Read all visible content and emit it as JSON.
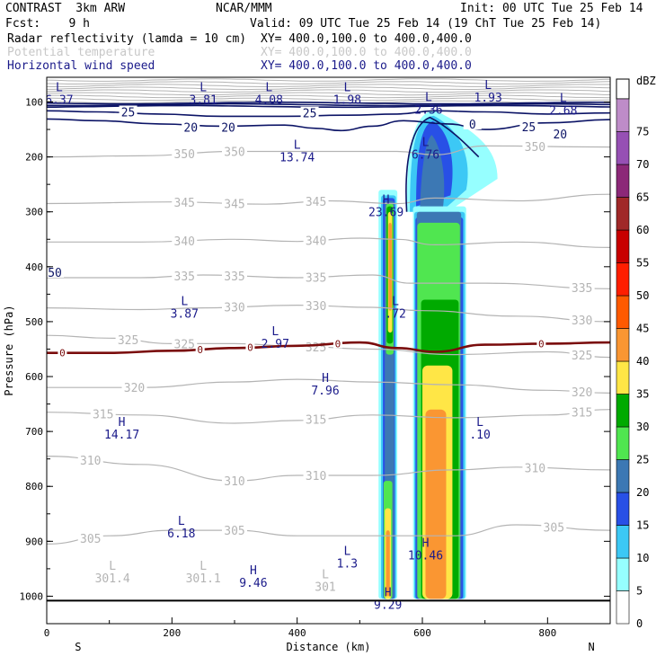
{
  "header": {
    "model": "CONTRAST  3km ARW",
    "org": "NCAR/MMM",
    "init": "Init: 00 UTC Tue 25 Feb 14",
    "fcst": "Fcst:    9 h",
    "valid": "Valid: 09 UTC Tue 25 Feb 14 (19 ChT Tue 25 Feb 14)",
    "field1": "Radar reflectivity (lamda = 10 cm)",
    "field1_xy": "XY= 400.0,100.0 to 400.0,400.0",
    "field2": "Potential temperature",
    "field2_xy": "XY= 400.0,100.0 to 400.0,400.0",
    "field3": "Horizontal wind speed",
    "field3_xy": "XY= 400.0,100.0 to 400.0,400.0"
  },
  "colors": {
    "theta": "#b4b4b4",
    "wind": "#0c1466",
    "freezing": "#7a0c0c",
    "extrema_text": "#1a1a8a"
  },
  "chart_data": {
    "type": "heatmap",
    "xlabel": "Distance (km)",
    "ylabel": "Pressure (hPa)",
    "xlim": [
      0,
      900
    ],
    "ylim": [
      1050,
      55
    ],
    "xticks": [
      "0",
      "200",
      "400",
      "600",
      "800"
    ],
    "xtick_values": [
      0,
      200,
      400,
      600,
      800
    ],
    "yticks": [
      "100",
      "200",
      "300",
      "400",
      "500",
      "600",
      "700",
      "800",
      "900",
      "1000"
    ],
    "ytick_values": [
      100,
      200,
      300,
      400,
      500,
      600,
      700,
      800,
      900,
      1000
    ],
    "end_labels": {
      "left": "S",
      "right": "N"
    },
    "colorbar": {
      "unit": "dBZ",
      "levels": [
        "0",
        "5",
        "10",
        "15",
        "20",
        "25",
        "30",
        "35",
        "40",
        "45",
        "50",
        "55",
        "60",
        "65",
        "70",
        "75"
      ],
      "colors": [
        "#ffffff",
        "#96ffff",
        "#3cc8f5",
        "#2850e6",
        "#3c78b4",
        "#50e650",
        "#00aa00",
        "#ffe646",
        "#fa9632",
        "#ff5a00",
        "#ff1e00",
        "#c80000",
        "#a02828",
        "#8c2878",
        "#9650b4",
        "#be8cc8"
      ]
    },
    "reflectivity_cells": [
      {
        "name": "anvil",
        "x": [
          575,
          720
        ],
        "p": [
          115,
          300
        ],
        "max_dbz": 25
      },
      {
        "name": "main-column",
        "x": [
          585,
          670
        ],
        "p": [
          300,
          1005
        ],
        "max_dbz": 45
      },
      {
        "name": "thin-column",
        "x": [
          530,
          560
        ],
        "p": [
          260,
          1005
        ],
        "max_dbz": 45
      }
    ],
    "wind_speed_contours": [
      {
        "label": "25",
        "points": [
          [
            0,
            116
          ],
          [
            80,
            118
          ],
          [
            180,
            122
          ],
          [
            280,
            126
          ],
          [
            380,
            126
          ],
          [
            480,
            124
          ],
          [
            560,
            122
          ],
          [
            620,
            116
          ],
          [
            700,
            118
          ],
          [
            800,
            122
          ],
          [
            900,
            120
          ]
        ]
      },
      {
        "label": "20",
        "points": [
          [
            0,
            131
          ],
          [
            80,
            134
          ],
          [
            180,
            140
          ],
          [
            280,
            144
          ],
          [
            380,
            142
          ],
          [
            430,
            148
          ],
          [
            470,
            152
          ],
          [
            520,
            144
          ],
          [
            570,
            134
          ],
          [
            640,
            140
          ],
          [
            700,
            150
          ],
          [
            800,
            138
          ],
          [
            900,
            132
          ]
        ]
      }
    ],
    "wind_speed_labels": [
      {
        "text": "25",
        "x": 130,
        "p": 118
      },
      {
        "text": "25",
        "x": 420,
        "p": 120
      },
      {
        "text": "20",
        "x": 230,
        "p": 146
      },
      {
        "text": "20",
        "x": 290,
        "p": 146
      },
      {
        "text": "25",
        "x": 770,
        "p": 145
      },
      {
        "text": "20",
        "x": 820,
        "p": 158
      },
      {
        "text": "0",
        "x": 680,
        "p": 140
      },
      {
        "text": "50",
        "x": 13,
        "p": 410
      }
    ],
    "theta_contours": [
      {
        "label": "350",
        "points": [
          [
            0,
            200
          ],
          [
            150,
            198
          ],
          [
            300,
            190
          ],
          [
            450,
            190
          ],
          [
            560,
            190
          ],
          [
            620,
            196
          ],
          [
            700,
            180
          ],
          [
            900,
            182
          ]
        ],
        "labels_at": [
          220,
          300,
          780
        ]
      },
      {
        "label": "345",
        "points": [
          [
            0,
            285
          ],
          [
            200,
            282
          ],
          [
            350,
            286
          ],
          [
            450,
            280
          ],
          [
            560,
            285
          ],
          [
            620,
            275
          ],
          [
            750,
            280
          ],
          [
            900,
            268
          ]
        ],
        "labels_at": [
          220,
          300,
          430
        ]
      },
      {
        "label": "340",
        "points": [
          [
            0,
            355
          ],
          [
            150,
            355
          ],
          [
            300,
            350
          ],
          [
            400,
            354
          ],
          [
            500,
            348
          ],
          [
            560,
            350
          ],
          [
            620,
            360
          ],
          [
            750,
            355
          ],
          [
            900,
            365
          ]
        ],
        "labels_at": [
          220,
          430
        ]
      },
      {
        "label": "335",
        "points": [
          [
            0,
            420
          ],
          [
            150,
            420
          ],
          [
            250,
            415
          ],
          [
            400,
            420
          ],
          [
            520,
            415
          ],
          [
            580,
            430
          ],
          [
            700,
            430
          ],
          [
            900,
            440
          ]
        ],
        "labels_at": [
          220,
          300,
          430,
          855
        ]
      },
      {
        "label": "330",
        "points": [
          [
            0,
            475
          ],
          [
            150,
            478
          ],
          [
            250,
            475
          ],
          [
            400,
            470
          ],
          [
            520,
            474
          ],
          [
            600,
            480
          ],
          [
            750,
            490
          ],
          [
            900,
            500
          ]
        ],
        "labels_at": [
          300,
          430,
          855
        ]
      },
      {
        "label": "325",
        "points": [
          [
            0,
            525
          ],
          [
            100,
            530
          ],
          [
            200,
            540
          ],
          [
            300,
            540
          ],
          [
            400,
            545
          ],
          [
            520,
            550
          ],
          [
            650,
            560
          ],
          [
            800,
            555
          ],
          [
            900,
            565
          ]
        ],
        "labels_at": [
          130,
          220,
          430,
          855
        ]
      },
      {
        "label": "320",
        "points": [
          [
            0,
            620
          ],
          [
            150,
            620
          ],
          [
            300,
            610
          ],
          [
            400,
            605
          ],
          [
            520,
            610
          ],
          [
            650,
            615
          ],
          [
            800,
            625
          ],
          [
            900,
            630
          ]
        ],
        "labels_at": [
          140,
          855
        ]
      },
      {
        "label": "315",
        "points": [
          [
            0,
            665
          ],
          [
            150,
            670
          ],
          [
            300,
            685
          ],
          [
            400,
            680
          ],
          [
            520,
            670
          ],
          [
            650,
            675
          ],
          [
            800,
            670
          ],
          [
            900,
            660
          ]
        ],
        "labels_at": [
          90,
          430,
          855
        ]
      },
      {
        "label": "310",
        "points": [
          [
            0,
            745
          ],
          [
            150,
            760
          ],
          [
            300,
            790
          ],
          [
            400,
            780
          ],
          [
            520,
            780
          ],
          [
            650,
            770
          ],
          [
            750,
            765
          ],
          [
            900,
            770
          ]
        ],
        "labels_at": [
          70,
          300,
          430,
          780
        ]
      },
      {
        "label": "305",
        "points": [
          [
            0,
            905
          ],
          [
            100,
            890
          ],
          [
            200,
            880
          ],
          [
            300,
            880
          ],
          [
            400,
            890
          ],
          [
            520,
            890
          ],
          [
            650,
            890
          ],
          [
            750,
            870
          ],
          [
            900,
            880
          ]
        ],
        "labels_at": [
          70,
          300,
          810
        ]
      }
    ],
    "stratosphere_theta_bands": [
      60,
      65,
      70,
      75,
      80,
      85,
      90,
      95,
      100
    ],
    "freezing_level": {
      "label": "0",
      "points": [
        [
          0,
          557
        ],
        [
          100,
          557
        ],
        [
          200,
          553
        ],
        [
          300,
          548
        ],
        [
          400,
          544
        ],
        [
          500,
          538
        ],
        [
          560,
          548
        ],
        [
          620,
          555
        ],
        [
          700,
          542
        ],
        [
          800,
          540
        ],
        [
          900,
          538
        ]
      ],
      "labels_at": [
        25,
        245,
        325,
        465,
        790
      ]
    },
    "extrema": [
      {
        "type": "L",
        "value": "6.37",
        "x": 20,
        "p": 80
      },
      {
        "type": "L",
        "value": "3.81",
        "x": 250,
        "p": 80
      },
      {
        "type": "L",
        "value": "4.08",
        "x": 355,
        "p": 80
      },
      {
        "type": "L",
        "value": "1.98",
        "x": 480,
        "p": 80
      },
      {
        "type": "L",
        "value": "2.36",
        "x": 610,
        "p": 98
      },
      {
        "type": "L",
        "value": "1.93",
        "x": 705,
        "p": 76
      },
      {
        "type": "L",
        "value": "2.68",
        "x": 825,
        "p": 100
      },
      {
        "type": "L",
        "value": "13.74",
        "x": 400,
        "p": 185
      },
      {
        "type": "L",
        "value": "6.76",
        "x": 605,
        "p": 180
      },
      {
        "type": "H",
        "value": "23.69",
        "x": 542,
        "p": 285
      },
      {
        "type": "L",
        "value": "3.87",
        "x": 220,
        "p": 470
      },
      {
        "type": "L",
        "value": ".72",
        "x": 557,
        "p": 470
      },
      {
        "type": "L",
        "value": "2.97",
        "x": 365,
        "p": 525
      },
      {
        "type": "H",
        "value": "7.96",
        "x": 445,
        "p": 610
      },
      {
        "type": "H",
        "value": "14.17",
        "x": 120,
        "p": 690
      },
      {
        "type": "L",
        "value": ".10",
        "x": 692,
        "p": 690
      },
      {
        "type": "L",
        "value": "6.18",
        "x": 215,
        "p": 870
      },
      {
        "type": "H",
        "value": "10.46",
        "x": 605,
        "p": 910
      },
      {
        "type": "L",
        "value": "1.3",
        "x": 480,
        "p": 925
      },
      {
        "type": "H",
        "value": "9.46",
        "x": 330,
        "p": 960
      },
      {
        "type": "H",
        "value": "9.29",
        "x": 545,
        "p": 1000
      }
    ],
    "surface_theta_labels": [
      {
        "type": "L",
        "value": "301.4",
        "x": 105,
        "p": 975
      },
      {
        "type": "L",
        "value": "301.1",
        "x": 250,
        "p": 975
      },
      {
        "type": "L",
        "value": "301",
        "x": 445,
        "p": 990
      }
    ],
    "surface_line_p": 1008
  }
}
